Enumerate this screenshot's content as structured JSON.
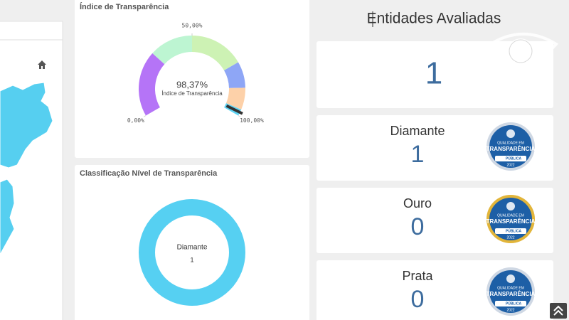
{
  "gauge": {
    "title": "Índice de Transparência",
    "value": {
      "value": 98.37,
      "label": "98,37%"
    },
    "value_caption": "Índice de Transparência",
    "lim": [
      0,
      100
    ],
    "ticks": [
      {
        "value": 0,
        "label": "0,00%"
      },
      {
        "value": 50,
        "label": "50,00%"
      },
      {
        "value": 100,
        "label": "100,00%"
      }
    ],
    "bands": [
      {
        "from": 0,
        "to": 30,
        "color": "#b574f7"
      },
      {
        "from": 30,
        "to": 50,
        "color": "#bdf5d2"
      },
      {
        "from": 50,
        "to": 75,
        "color": "#cdf2b4"
      },
      {
        "from": 75,
        "to": 87,
        "color": "#8ea6f6"
      },
      {
        "from": 87,
        "to": 97,
        "color": "#fdd1a9"
      },
      {
        "from": 97,
        "to": 100,
        "color": "#5fd3f3"
      }
    ]
  },
  "classification": {
    "type": "pie",
    "title": "Classificação Nível de Transparência",
    "categories": [
      "Diamante"
    ],
    "values": [
      1
    ],
    "color": "#56d0f2"
  },
  "summary": {
    "title": "Entidades Avaliadas",
    "value": 1
  },
  "cards": [
    {
      "label": "Diamante",
      "value": 1
    },
    {
      "label": "Ouro",
      "value": 0
    },
    {
      "label": "Prata",
      "value": 0
    }
  ],
  "badge": {
    "line1": "QUALIDADE EM",
    "line2": "TRANSPARÊNCIA",
    "brand": "PÚBLICA",
    "year": "2022"
  }
}
